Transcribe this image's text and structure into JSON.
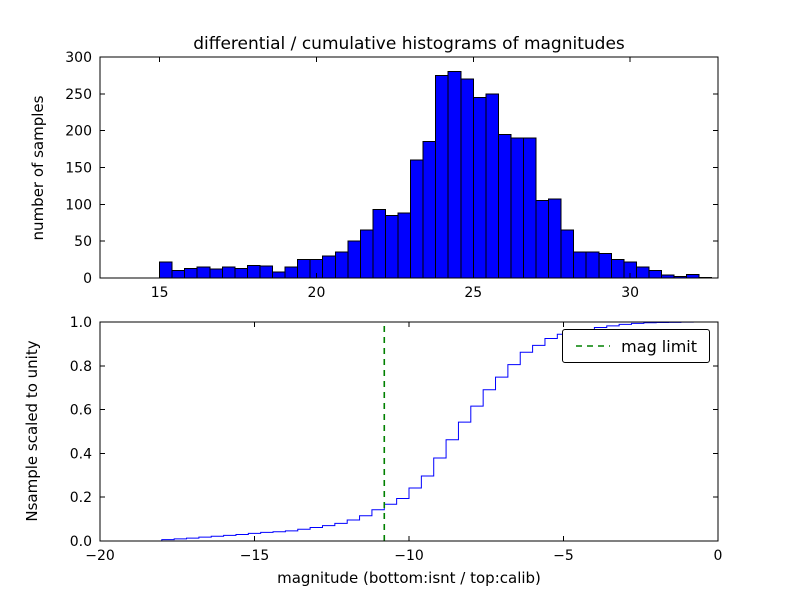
{
  "figure": {
    "background": "#ffffff"
  },
  "chart_data": [
    {
      "type": "bar",
      "subplot": "top",
      "title": "differential / cumulative histograms of magnitudes",
      "ylabel": "number of samples",
      "bar_color": "#0000ff",
      "bar_edge_color": "#000000",
      "bin_start": 15.0,
      "bin_width": 0.4,
      "values": [
        22,
        10,
        13,
        15,
        12,
        15,
        13,
        17,
        16,
        8,
        15,
        25,
        25,
        30,
        35,
        50,
        65,
        93,
        85,
        88,
        160,
        185,
        275,
        280,
        270,
        245,
        250,
        195,
        190,
        190,
        105,
        107,
        65,
        35,
        35,
        33,
        25,
        22,
        15,
        10,
        4,
        2,
        5,
        1
      ],
      "xlim": [
        13.1,
        32.8
      ],
      "ylim": [
        0,
        300
      ],
      "xticks": [
        15,
        20,
        25,
        30
      ],
      "yticks": [
        0,
        50,
        100,
        150,
        200,
        250,
        300
      ],
      "grid": false
    },
    {
      "type": "line",
      "subplot": "bottom",
      "style": "cumulative-step",
      "ylabel": "Nsample scaled to unity",
      "xlabel": "magnitude (bottom:isnt / top:calib)",
      "line_color": "#0000ff",
      "offset_from_top_bins": -33.0,
      "xlim": [
        -20,
        0
      ],
      "ylim": [
        0.0,
        1.0
      ],
      "xticks": [
        -20,
        -15,
        -10,
        -5,
        0
      ],
      "yticks": [
        0.0,
        0.2,
        0.4,
        0.6,
        0.8,
        1.0
      ],
      "grid": false,
      "mag_limit": {
        "x": -10.8,
        "color": "#008000",
        "style": "dashed",
        "label": "mag limit"
      },
      "legend": {
        "entries": [
          "mag limit"
        ],
        "position": "upper right"
      }
    }
  ]
}
